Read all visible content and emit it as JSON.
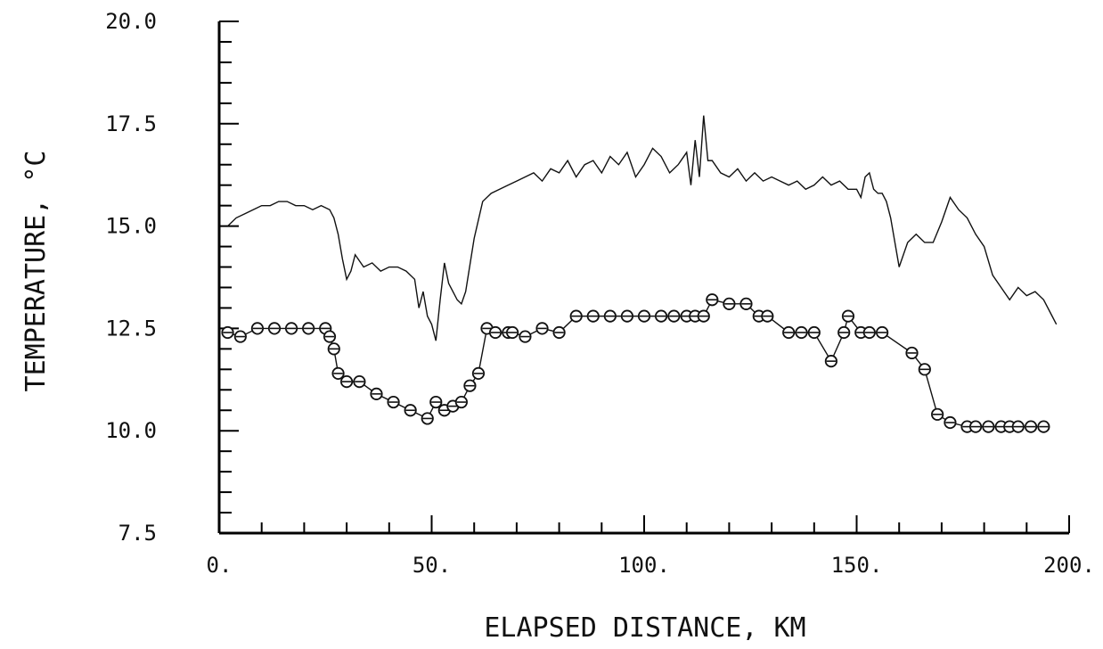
{
  "chart_data": {
    "type": "line",
    "xlabel": "ELAPSED DISTANCE, KM",
    "ylabel": "TEMPERATURE, °C",
    "xlim": [
      0,
      200
    ],
    "ylim": [
      7.5,
      20.0
    ],
    "x_ticks": [
      "0.",
      "50.",
      "100.",
      "150.",
      "200."
    ],
    "y_ticks": [
      "7.5",
      "10.0",
      "12.5",
      "15.0",
      "17.5",
      "20.0"
    ],
    "grid": false,
    "series": [
      {
        "style": "line",
        "x": [
          2,
          4,
          6,
          8,
          10,
          12,
          14,
          16,
          18,
          20,
          22,
          24,
          26,
          27,
          28,
          29,
          30,
          31,
          32,
          34,
          36,
          38,
          40,
          42,
          44,
          46,
          47,
          48,
          49,
          50,
          51,
          52,
          53,
          54,
          55,
          56,
          57,
          58,
          60,
          62,
          64,
          66,
          68,
          70,
          72,
          74,
          76,
          78,
          80,
          82,
          84,
          86,
          88,
          90,
          92,
          94,
          96,
          98,
          100,
          102,
          104,
          106,
          108,
          110,
          111,
          112,
          113,
          114,
          115,
          116,
          118,
          120,
          122,
          124,
          126,
          128,
          130,
          132,
          134,
          136,
          138,
          140,
          142,
          144,
          146,
          148,
          150,
          151,
          152,
          153,
          154,
          155,
          156,
          157,
          158,
          159,
          160,
          162,
          164,
          166,
          168,
          170,
          172,
          174,
          176,
          178,
          180,
          182,
          184,
          186,
          188,
          190,
          192,
          194,
          196,
          197
        ],
        "y": [
          15.0,
          15.2,
          15.3,
          15.4,
          15.5,
          15.5,
          15.6,
          15.6,
          15.5,
          15.5,
          15.4,
          15.5,
          15.4,
          15.2,
          14.8,
          14.2,
          13.7,
          13.9,
          14.3,
          14.0,
          14.1,
          13.9,
          14.0,
          14.0,
          13.9,
          13.7,
          13.0,
          13.4,
          12.8,
          12.6,
          12.2,
          13.2,
          14.1,
          13.6,
          13.4,
          13.2,
          13.1,
          13.4,
          14.7,
          15.6,
          15.8,
          15.9,
          16.0,
          16.1,
          16.2,
          16.3,
          16.1,
          16.4,
          16.3,
          16.6,
          16.2,
          16.5,
          16.6,
          16.3,
          16.7,
          16.5,
          16.8,
          16.2,
          16.5,
          16.9,
          16.7,
          16.3,
          16.5,
          16.8,
          16.0,
          17.1,
          16.2,
          17.7,
          16.6,
          16.6,
          16.3,
          16.2,
          16.4,
          16.1,
          16.3,
          16.1,
          16.2,
          16.1,
          16.0,
          16.1,
          15.9,
          16.0,
          16.2,
          16.0,
          16.1,
          15.9,
          15.9,
          15.7,
          16.2,
          16.3,
          15.9,
          15.8,
          15.8,
          15.6,
          15.2,
          14.6,
          14.0,
          14.6,
          14.8,
          14.6,
          14.6,
          15.1,
          15.7,
          15.4,
          15.2,
          14.8,
          14.5,
          13.8,
          13.5,
          13.2,
          13.5,
          13.3,
          13.4,
          13.2,
          12.8,
          12.6
        ]
      },
      {
        "style": "line-marker",
        "x": [
          2,
          5,
          9,
          13,
          17,
          21,
          25,
          26,
          27,
          28,
          30,
          33,
          37,
          41,
          45,
          49,
          51,
          53,
          55,
          57,
          59,
          61,
          63,
          65,
          68,
          69,
          72,
          76,
          80,
          84,
          88,
          92,
          96,
          100,
          104,
          107,
          110,
          112,
          114,
          116,
          120,
          124,
          127,
          129,
          134,
          137,
          140,
          144,
          147,
          148,
          151,
          153,
          156,
          163,
          166,
          169,
          172,
          176,
          178,
          181,
          184,
          186,
          188,
          191,
          194
        ],
        "y": [
          12.4,
          12.3,
          12.5,
          12.5,
          12.5,
          12.5,
          12.5,
          12.3,
          12.0,
          11.4,
          11.2,
          11.2,
          10.9,
          10.7,
          10.5,
          10.3,
          10.7,
          10.5,
          10.6,
          10.7,
          11.1,
          11.4,
          12.5,
          12.4,
          12.4,
          12.4,
          12.3,
          12.5,
          12.4,
          12.8,
          12.8,
          12.8,
          12.8,
          12.8,
          12.8,
          12.8,
          12.8,
          12.8,
          12.8,
          13.2,
          13.1,
          13.1,
          12.8,
          12.8,
          12.4,
          12.4,
          12.4,
          11.7,
          12.4,
          12.8,
          12.4,
          12.4,
          12.4,
          11.9,
          11.5,
          10.4,
          10.2,
          10.1,
          10.1,
          10.1,
          10.1,
          10.1,
          10.1,
          10.1,
          10.1
        ]
      }
    ]
  }
}
